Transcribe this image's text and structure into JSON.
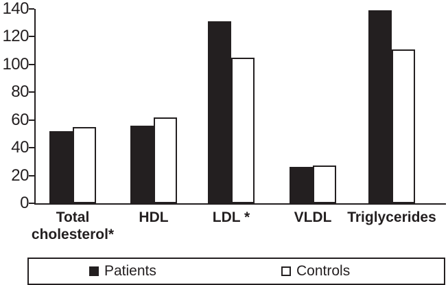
{
  "chart_data": {
    "type": "bar",
    "title": "",
    "xlabel": "",
    "ylabel": "",
    "categories": [
      "Total cholesterol*",
      "HDL",
      "LDL *",
      "VLDL",
      "Triglycerides"
    ],
    "series": [
      {
        "name": "Patients",
        "style": "filled",
        "color": "#231f20",
        "values": [
          52,
          56,
          131,
          26,
          139
        ]
      },
      {
        "name": "Controls",
        "style": "outlined",
        "color": "#ffffff",
        "values": [
          55,
          62,
          105,
          27,
          111
        ]
      }
    ],
    "ylim": [
      0,
      140
    ],
    "ytick_step": 20,
    "yticks": [
      0,
      20,
      40,
      60,
      80,
      100,
      120,
      140
    ],
    "grid": false,
    "legend_position": "bottom",
    "axis_color": "#231f20",
    "background_color": "#ffffff"
  },
  "legend": {
    "entries": [
      {
        "label": "Patients",
        "swatch": "filled"
      },
      {
        "label": "Controls",
        "swatch": "outlined"
      }
    ]
  }
}
